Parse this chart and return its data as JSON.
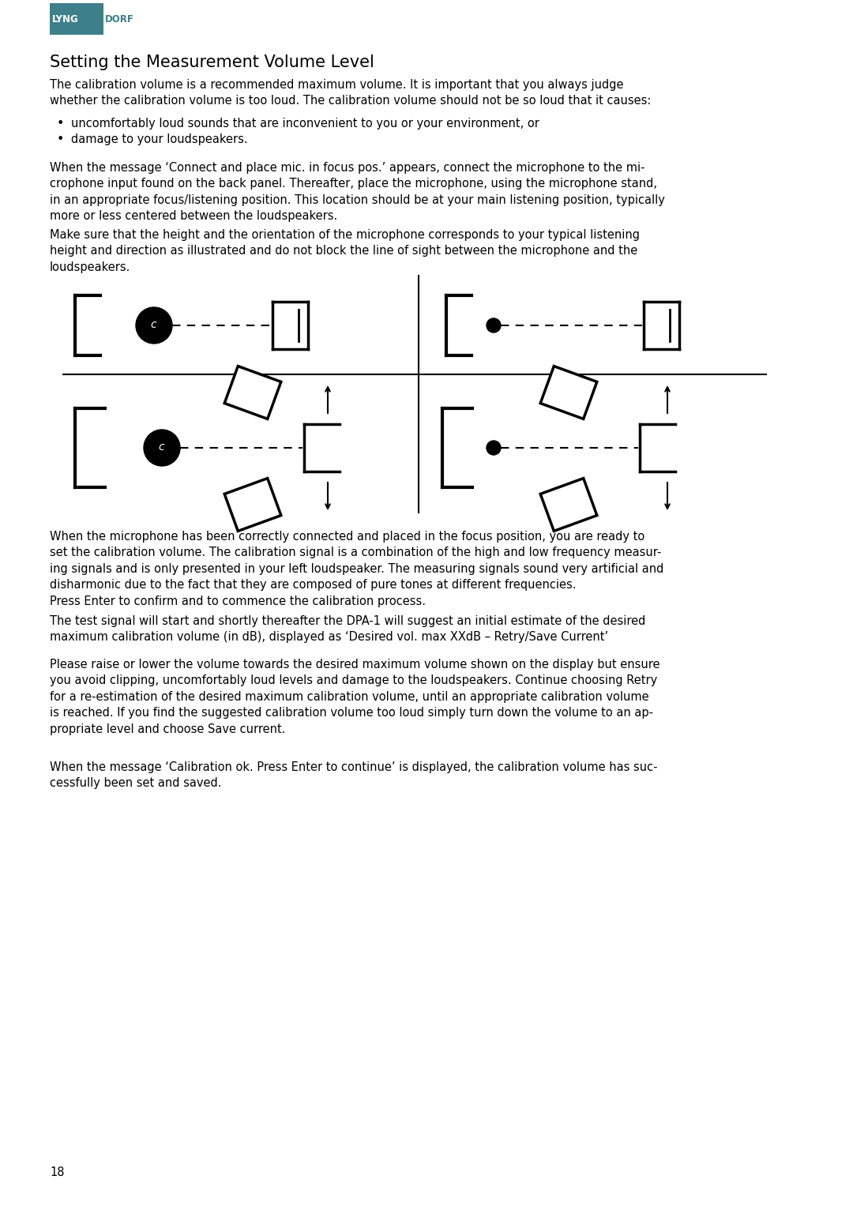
{
  "bg_color": "#ffffff",
  "text_color": "#000000",
  "logo_box_color": "#3d7f8a",
  "logo_lyng_color": "#ffffff",
  "logo_dorf_color": "#3d7f8a",
  "title": "Setting the Measurement Volume Level",
  "para1": "The calibration volume is a recommended maximum volume. It is important that you always judge\nwhether the calibration volume is too loud. The calibration volume should not be so loud that it causes:",
  "bullet1": "uncomfortably loud sounds that are inconvenient to you or your environment, or",
  "bullet2": "damage to your loudspeakers.",
  "para2": "When the message ‘Connect and place mic. in focus pos.’ appears, connect the microphone to the mi-\ncrophone input found on the back panel. Thereafter, place the microphone, using the microphone stand,\nin an appropriate focus/listening position. This location should be at your main listening position, typically\nmore or less centered between the loudspeakers.",
  "para3": "Make sure that the height and the orientation of the microphone corresponds to your typical listening\nheight and direction as illustrated and do not block the line of sight between the microphone and the\nloudspeakers.",
  "para4": "When the microphone has been correctly connected and placed in the focus position, you are ready to\nset the calibration volume. The calibration signal is a combination of the high and low frequency measur-\ning signals and is only presented in your left loudspeaker. The measuring signals sound very artificial and\ndisharmonic due to the fact that they are composed of pure tones at different frequencies.\nPress Enter to confirm and to commence the calibration process.",
  "para5": "The test signal will start and shortly thereafter the DPA-1 will suggest an initial estimate of the desired\nmaximum calibration volume (in dB), displayed as ‘Desired vol. max XXdB – Retry/Save Current’",
  "para6": "Please raise or lower the volume towards the desired maximum volume shown on the display but ensure\nyou avoid clipping, uncomfortably loud levels and damage to the loudspeakers. Continue choosing Retry\nfor a re-estimation of the desired maximum calibration volume, until an appropriate calibration volume\nis reached. If you find the suggested calibration volume too loud simply turn down the volume to an ap-\npropriate level and choose Save current.",
  "para7": "When the message ‘Calibration ok. Press Enter to continue’ is displayed, the calibration volume has suc-\ncessfully been set and saved.",
  "page_number": "18",
  "font_size_body": 10.5,
  "font_size_title": 15
}
